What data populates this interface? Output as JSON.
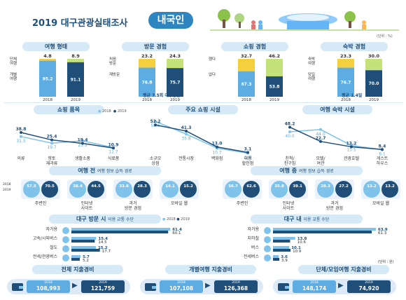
{
  "header": {
    "title": "2019 대구관광실태조사",
    "badge": "내국인",
    "unit": "(단위 : %)"
  },
  "colors": {
    "y2018": "#7fc3ea",
    "y2019": "#1f4e79",
    "accent": "#f4d03f",
    "green": "#8bc34a"
  },
  "chart_data": [
    {
      "type": "bar",
      "title": "여행 형태",
      "categories": [
        "2018",
        "2019"
      ],
      "series": [
        {
          "name": "단체여행",
          "values": [
            4.8,
            8.9
          ]
        },
        {
          "name": "개별여행",
          "values": [
            95.2,
            91.1
          ]
        }
      ]
    },
    {
      "type": "bar",
      "title": "방문 경험",
      "categories": [
        "2018",
        "2019"
      ],
      "series": [
        {
          "name": "처음방문",
          "values": [
            23.2,
            24.3
          ]
        },
        {
          "name": "재방문",
          "values": [
            76.8,
            75.7
          ]
        }
      ],
      "note": "평균 7.5회 대구방문"
    },
    {
      "type": "bar",
      "title": "쇼핑 경험",
      "categories": [
        "2018",
        "2019"
      ],
      "series": [
        {
          "name": "했다",
          "values": [
            32.7,
            46.2
          ]
        },
        {
          "name": "없다",
          "values": [
            67.3,
            53.8
          ]
        }
      ]
    },
    {
      "type": "bar",
      "title": "숙박 경험",
      "categories": [
        "2018",
        "2019"
      ],
      "series": [
        {
          "name": "숙박여행",
          "values": [
            23.3,
            30.0
          ]
        },
        {
          "name": "당일여행",
          "values": [
            76.7,
            70.0
          ]
        }
      ],
      "note": "평균 1.4일"
    },
    {
      "type": "line",
      "title": "쇼핑 품목",
      "categories": [
        "의류",
        "향토재과류",
        "생활소품",
        "식료품"
      ],
      "series": [
        {
          "name": "2018",
          "values": [
            31.5,
            19.7,
            23.9,
            11.7
          ]
        },
        {
          "name": "2019",
          "values": [
            38.8,
            25.4,
            19.4,
            10.9
          ]
        }
      ]
    },
    {
      "type": "line",
      "title": "주요 쇼핑 시설",
      "categories": [
        "소규모상점",
        "전통시장",
        "백화점",
        "대형할인점"
      ],
      "series": [
        {
          "name": "2018",
          "values": [
            58.5,
            35.8,
            10.7,
            1.8
          ]
        },
        {
          "name": "2019",
          "values": [
            52.2,
            41.3,
            13.0,
            3.1
          ]
        }
      ]
    },
    {
      "type": "line",
      "title": "여행 숙박 시설",
      "categories": [
        "친척/친구집",
        "모텔/여관",
        "관광호텔",
        "게스트하우스"
      ],
      "series": [
        {
          "name": "2018",
          "values": [
            40.0,
            44.0,
            15.5,
            8.1
          ]
        },
        {
          "name": "2019",
          "values": [
            48.2,
            22.7,
            13.2,
            8.4
          ]
        }
      ]
    },
    {
      "type": "bar",
      "title": "여행 전 여행 정보 습득 경로",
      "categories": [
        "주변인",
        "인터넷 사이트",
        "과거 방문 경험",
        "모바일 웹"
      ],
      "series": [
        {
          "name": "2018",
          "values": [
            57.5,
            38.4,
            33.8,
            14.1
          ]
        },
        {
          "name": "2019",
          "values": [
            70.5,
            44.5,
            28.3,
            15.2
          ]
        }
      ]
    },
    {
      "type": "bar",
      "title": "여행 중 여행 정보 습득 경로",
      "categories": [
        "주변인",
        "인터넷 사이트",
        "과거 방문 경험",
        "모바일 웹"
      ],
      "series": [
        {
          "name": "2018",
          "values": [
            56.7,
            35.8,
            28.3,
            13.2
          ]
        },
        {
          "name": "2019",
          "values": [
            62.6,
            39.1,
            27.2,
            13.2
          ]
        }
      ]
    },
    {
      "type": "bar",
      "title": "대구 방문 시 이용 교통 수단",
      "categories": [
        "자가용",
        "고속/시외버스",
        "철도",
        "전세/관광버스"
      ],
      "series": [
        {
          "name": "2018",
          "values": [
            61.4,
            15.4,
            15.2,
            5.7
          ]
        },
        {
          "name": "2019",
          "values": [
            60.1,
            14.5,
            17.7,
            5.2
          ]
        }
      ]
    },
    {
      "type": "bar",
      "title": "대구 내 이용 교통 수단",
      "categories": [
        "자가용",
        "지하철",
        "버스",
        "전세버스"
      ],
      "series": [
        {
          "name": "2018",
          "values": [
            63.9,
            13.8,
            10.1,
            3.6
          ]
        },
        {
          "name": "2019",
          "values": [
            61.3,
            10.6,
            10.9,
            3.9
          ]
        }
      ],
      "unit": "(단위 : 원)"
    }
  ],
  "panels": {
    "p1": {
      "title": "여행 형태",
      "top_label": "단체\n여행",
      "bottom_label": "개별\n여행",
      "years": [
        "2018",
        "2019"
      ],
      "top_vals": [
        "4.8",
        "8.9"
      ],
      "bot_vals": [
        "95.2",
        "91.1"
      ]
    },
    "p2": {
      "title": "방문 경험",
      "top_label": "처음\n방문",
      "bottom_label": "재방문",
      "years": [
        "2018",
        "2019"
      ],
      "top_vals": [
        "23.2",
        "24.3"
      ],
      "bot_vals": [
        "76.8",
        "75.7"
      ],
      "note": "평균 7.5회 대구방문"
    },
    "p3": {
      "title": "쇼핑 경험",
      "top_label": "했다",
      "bottom_label": "없다",
      "years": [
        "2018",
        "2019"
      ],
      "top_vals": [
        "32.7",
        "46.2"
      ],
      "bot_vals": [
        "67.3",
        "53.8"
      ]
    },
    "p4": {
      "title": "숙박 경험",
      "top_label": "숙박\n여행",
      "bottom_label": "당일\n여행",
      "years": [
        "2018",
        "2019"
      ],
      "top_vals": [
        "23.3",
        "30.0"
      ],
      "bot_vals": [
        "76.7",
        "70.0"
      ],
      "note": "평균 1.4일"
    }
  },
  "lines": {
    "l1": {
      "title": "쇼핑 품목",
      "legend": [
        "2018",
        "2019"
      ],
      "cats": [
        "의류",
        "향토\n재과류",
        "생활소품",
        "식료품"
      ],
      "v18": [
        31.5,
        19.7,
        23.9,
        11.7
      ],
      "v19": [
        38.8,
        25.4,
        19.4,
        10.9
      ],
      "lab18": [
        "31.5",
        "19.7",
        "23.9",
        "11.7"
      ],
      "lab19": [
        "38.8",
        "25.4",
        "19.4",
        "10.9"
      ]
    },
    "l2": {
      "title": "주요 쇼핑 시설",
      "cats": [
        "소규모\n상점",
        "전통시장",
        "백화점",
        "대형\n할인점"
      ],
      "v18": [
        58.5,
        35.8,
        10.7,
        1.8
      ],
      "v19": [
        52.2,
        41.3,
        13.0,
        3.1
      ],
      "lab18": [
        "58.5",
        "35.8",
        "10.7",
        "1.8"
      ],
      "lab19": [
        "52.2",
        "41.3",
        "13.0",
        "3.1"
      ]
    },
    "l3": {
      "title": "여행 숙박 시설",
      "cats": [
        "친척/\n친구집",
        "모텔/\n여관",
        "관광호텔",
        "게스트\n하우스"
      ],
      "v18": [
        40.0,
        44.0,
        15.5,
        8.1
      ],
      "v19": [
        48.2,
        22.7,
        13.2,
        8.4
      ],
      "lab18": [
        "40.0",
        "44.0",
        "15.5",
        "8.1"
      ],
      "lab19": [
        "48.2",
        "22.7",
        "13.2",
        "8.4"
      ]
    }
  },
  "info": {
    "before": {
      "title": "여행 전",
      "sub": "여행 정보 습득 경로",
      "years": [
        "2018",
        "2019"
      ],
      "items": [
        {
          "name": "주변인",
          "a": "57.5",
          "b": "70.5"
        },
        {
          "name": "인터넷\n사이트",
          "a": "38.4",
          "b": "44.5"
        },
        {
          "name": "과거\n방문 경험",
          "a": "33.8",
          "b": "28.3"
        },
        {
          "name": "모바일 웹",
          "a": "14.1",
          "b": "15.2"
        }
      ]
    },
    "during": {
      "title": "여행 중",
      "sub": "여행 정보 습득 경로",
      "items": [
        {
          "name": "주변인",
          "a": "56.7",
          "b": "62.6"
        },
        {
          "name": "인터넷\n사이트",
          "a": "35.8",
          "b": "39.1"
        },
        {
          "name": "과거\n방문 경험",
          "a": "28.3",
          "b": "27.2"
        },
        {
          "name": "모바일 웹",
          "a": "13.2",
          "b": "13.2"
        }
      ]
    }
  },
  "transport": {
    "left": {
      "title": "대구 방문 시",
      "sub": "이용 교통 수단",
      "legend": [
        "2018",
        "2019"
      ],
      "items": [
        {
          "name": "자가용",
          "a": "61.4",
          "b": "60.1"
        },
        {
          "name": "고속/시외버스",
          "a": "15.4",
          "b": "14.5"
        },
        {
          "name": "철도",
          "a": "15.2",
          "b": "17.7"
        },
        {
          "name": "전세/관광버스",
          "a": "5.7",
          "b": "5.2"
        }
      ]
    },
    "right": {
      "title": "대구 내",
      "sub": "이용 교통 수단",
      "unit": "(단위 : 원)",
      "items": [
        {
          "name": "자가용",
          "a": "63.9",
          "b": "61.3"
        },
        {
          "name": "지하철",
          "a": "13.8",
          "b": "10.6"
        },
        {
          "name": "버스",
          "a": "10.1",
          "b": "10.9"
        },
        {
          "name": "전세버스",
          "a": "3.6",
          "b": "3.9"
        }
      ]
    }
  },
  "spend": [
    {
      "title": "전체 지출경비",
      "y1": "2018",
      "v1": "108,993",
      "y2": "2019",
      "v2": "121,759"
    },
    {
      "title": "개별여행 지출경비",
      "y1": "2018",
      "v1": "107,108",
      "y2": "2019",
      "v2": "126,368"
    },
    {
      "title": "단체/모임여행 지출경비",
      "y1": "2018",
      "v1": "148,174",
      "y2": "2019",
      "v2": "74,920"
    }
  ]
}
